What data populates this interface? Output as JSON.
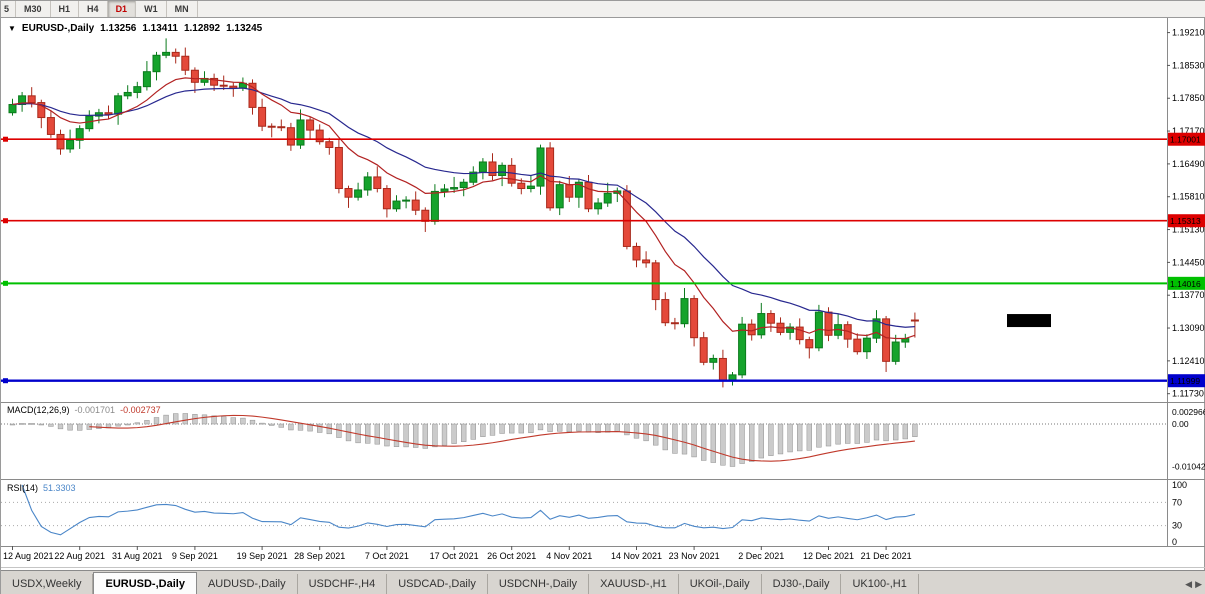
{
  "toolbar": {
    "timeframes": [
      {
        "label": "5",
        "active": false
      },
      {
        "label": "M30",
        "active": false
      },
      {
        "label": "H1",
        "active": false
      },
      {
        "label": "H4",
        "active": false
      },
      {
        "label": "D1",
        "active": true
      },
      {
        "label": "W1",
        "active": false
      },
      {
        "label": "MN",
        "active": false
      }
    ]
  },
  "icons": {
    "chart_menu": "▼",
    "tab_scroll_left": "◀",
    "tab_scroll_right": "▶"
  },
  "chart_header": {
    "symbol": "EURUSD-,Daily",
    "open": "1.13256",
    "high": "1.13411",
    "low": "1.12892",
    "close": "1.13245"
  },
  "indicators": {
    "macd": {
      "label": "MACD(12,26,9)",
      "value_main": "-0.001701",
      "value_signal": "-0.002737",
      "fast": 12,
      "slow": 26,
      "signal": 9,
      "histogram_color": "#cbcbcb",
      "histogram_edge": "#8f8f8f",
      "signal_color": "#c0392b",
      "scale_max": 0.0044,
      "scale_min": -0.0127,
      "axis": [
        {
          "text": "0.002966",
          "value": 0.002966
        },
        {
          "text": "0.00",
          "value": 0
        },
        {
          "text": "-0.01042",
          "value": -0.01042
        }
      ]
    },
    "rsi": {
      "label": "RSI(14)",
      "period": 14,
      "value": "51.3303",
      "line_color": "#4a86c8",
      "axis": [
        100,
        70,
        30,
        0
      ],
      "dotted_levels": [
        70,
        30
      ]
    }
  },
  "price_axis": {
    "tick_values": [
      1.1921,
      1.1853,
      1.1785,
      1.1717,
      1.1649,
      1.1581,
      1.1513,
      1.1445,
      1.1377,
      1.1309,
      1.1241,
      1.1173
    ]
  },
  "levels": [
    {
      "price": 1.17001,
      "color": "#dd0000",
      "width": 1.6,
      "handle": true
    },
    {
      "price": 1.15313,
      "color": "#dd0000",
      "width": 1.6,
      "handle": true
    },
    {
      "price": 1.14016,
      "color": "#00c000",
      "width": 2,
      "handle": true
    },
    {
      "price": 1.11999,
      "color": "#0000cc",
      "width": 2.4,
      "handle": true
    }
  ],
  "bid": {
    "price": 1.13245,
    "label_bg": "#000000",
    "label_fg": "#ffffff"
  },
  "time_axis": {
    "labels": [
      {
        "text": "12 Aug 2021",
        "index": 0
      },
      {
        "text": "22 Aug 2021",
        "index": 7
      },
      {
        "text": "31 Aug 2021",
        "index": 13
      },
      {
        "text": "9 Sep 2021",
        "index": 19
      },
      {
        "text": "19 Sep 2021",
        "index": 26
      },
      {
        "text": "28 Sep 2021",
        "index": 32
      },
      {
        "text": "7 Oct 2021",
        "index": 39
      },
      {
        "text": "17 Oct 2021",
        "index": 46
      },
      {
        "text": "26 Oct 2021",
        "index": 52
      },
      {
        "text": "4 Nov 2021",
        "index": 58
      },
      {
        "text": "14 Nov 2021",
        "index": 65
      },
      {
        "text": "23 Nov 2021",
        "index": 71
      },
      {
        "text": "2 Dec 2021",
        "index": 78
      },
      {
        "text": "12 Dec 2021",
        "index": 85
      },
      {
        "text": "21 Dec 2021",
        "index": 91
      }
    ]
  },
  "tabs": {
    "items": [
      {
        "label": "USDX,Weekly",
        "active": false
      },
      {
        "label": "EURUSD-,Daily",
        "active": true
      },
      {
        "label": "AUDUSD-,Daily",
        "active": false
      },
      {
        "label": "USDCHF-,H4",
        "active": false
      },
      {
        "label": "USDCAD-,Daily",
        "active": false
      },
      {
        "label": "USDCNH-,Daily",
        "active": false
      },
      {
        "label": "XAUUSD-,H1",
        "active": false
      },
      {
        "label": "UKOil-,Daily",
        "active": false
      },
      {
        "label": "DJ30-,Daily",
        "active": false
      },
      {
        "label": "UK100-,H1",
        "active": false
      }
    ]
  },
  "chart_data": {
    "type": "candlestick",
    "symbol": "EURUSD-",
    "period": "Daily",
    "price_range": {
      "top": 1.1945,
      "bottom": 1.1162
    },
    "up_color": "#15a32c",
    "up_edge": "#0a7a1c",
    "down_color": "#e4493a",
    "down_edge": "#a8291b",
    "ma_fast": {
      "period": 10,
      "color": "#b22222"
    },
    "ma_slow": {
      "period": 21,
      "color": "#28288f"
    },
    "candles": [
      [
        1.1755,
        1.1784,
        1.1749,
        1.1772
      ],
      [
        1.1772,
        1.1798,
        1.1757,
        1.179
      ],
      [
        1.179,
        1.1808,
        1.1766,
        1.1776
      ],
      [
        1.1776,
        1.1782,
        1.1723,
        1.1745
      ],
      [
        1.1745,
        1.176,
        1.1703,
        1.171
      ],
      [
        1.171,
        1.172,
        1.1668,
        1.168
      ],
      [
        1.168,
        1.172,
        1.1672,
        1.1698
      ],
      [
        1.1698,
        1.1729,
        1.168,
        1.1722
      ],
      [
        1.1722,
        1.176,
        1.1716,
        1.1748
      ],
      [
        1.1748,
        1.1763,
        1.1733,
        1.1755
      ],
      [
        1.1755,
        1.177,
        1.1742,
        1.1752
      ],
      [
        1.1752,
        1.1796,
        1.173,
        1.179
      ],
      [
        1.179,
        1.1812,
        1.1783,
        1.1797
      ],
      [
        1.1797,
        1.1819,
        1.1785,
        1.1809
      ],
      [
        1.1809,
        1.1862,
        1.1801,
        1.184
      ],
      [
        1.184,
        1.1881,
        1.1822,
        1.1874
      ],
      [
        1.1874,
        1.1909,
        1.1868,
        1.188
      ],
      [
        1.188,
        1.1888,
        1.1857,
        1.1872
      ],
      [
        1.1872,
        1.189,
        1.1833,
        1.1843
      ],
      [
        1.1843,
        1.1849,
        1.1796,
        1.1818
      ],
      [
        1.1818,
        1.1841,
        1.1811,
        1.1826
      ],
      [
        1.1826,
        1.1836,
        1.18,
        1.1812
      ],
      [
        1.1812,
        1.1832,
        1.1802,
        1.181
      ],
      [
        1.181,
        1.1817,
        1.1788,
        1.1806
      ],
      [
        1.1806,
        1.1828,
        1.18,
        1.1816
      ],
      [
        1.1816,
        1.1824,
        1.1751,
        1.1766
      ],
      [
        1.1766,
        1.1784,
        1.1717,
        1.1727
      ],
      [
        1.1727,
        1.1733,
        1.1704,
        1.1726
      ],
      [
        1.1726,
        1.1741,
        1.1717,
        1.1724
      ],
      [
        1.1724,
        1.1734,
        1.1676,
        1.1688
      ],
      [
        1.1688,
        1.1762,
        1.168,
        1.174
      ],
      [
        1.174,
        1.1747,
        1.1701,
        1.1719
      ],
      [
        1.1719,
        1.1731,
        1.1689,
        1.1695
      ],
      [
        1.1695,
        1.1703,
        1.1668,
        1.1683
      ],
      [
        1.1683,
        1.1701,
        1.1588,
        1.1598
      ],
      [
        1.1598,
        1.1604,
        1.1558,
        1.158
      ],
      [
        1.158,
        1.161,
        1.1573,
        1.1595
      ],
      [
        1.1595,
        1.1632,
        1.1583,
        1.1622
      ],
      [
        1.1622,
        1.1644,
        1.159,
        1.1598
      ],
      [
        1.1598,
        1.1605,
        1.1538,
        1.1556
      ],
      [
        1.1556,
        1.1584,
        1.155,
        1.1572
      ],
      [
        1.1572,
        1.1582,
        1.1557,
        1.1574
      ],
      [
        1.1574,
        1.1592,
        1.1543,
        1.1553
      ],
      [
        1.1553,
        1.1559,
        1.1508,
        1.153
      ],
      [
        1.153,
        1.1607,
        1.1523,
        1.1592
      ],
      [
        1.1592,
        1.1607,
        1.158,
        1.1597
      ],
      [
        1.1597,
        1.1622,
        1.1589,
        1.16
      ],
      [
        1.16,
        1.1618,
        1.1582,
        1.1611
      ],
      [
        1.1611,
        1.1644,
        1.1605,
        1.1632
      ],
      [
        1.1632,
        1.1661,
        1.1617,
        1.1653
      ],
      [
        1.1653,
        1.1671,
        1.1615,
        1.1625
      ],
      [
        1.1625,
        1.1652,
        1.1603,
        1.1646
      ],
      [
        1.1646,
        1.1661,
        1.1602,
        1.1609
      ],
      [
        1.1609,
        1.1619,
        1.1586,
        1.1598
      ],
      [
        1.1598,
        1.1625,
        1.159,
        1.1603
      ],
      [
        1.1603,
        1.1689,
        1.1585,
        1.1682
      ],
      [
        1.1682,
        1.1694,
        1.1552,
        1.1558
      ],
      [
        1.1558,
        1.1614,
        1.1543,
        1.1606
      ],
      [
        1.1606,
        1.1624,
        1.157,
        1.158
      ],
      [
        1.158,
        1.1617,
        1.1558,
        1.1611
      ],
      [
        1.1611,
        1.1626,
        1.1549,
        1.1556
      ],
      [
        1.1556,
        1.1578,
        1.1544,
        1.1568
      ],
      [
        1.1568,
        1.161,
        1.156,
        1.1588
      ],
      [
        1.1588,
        1.16,
        1.157,
        1.1593
      ],
      [
        1.1593,
        1.1605,
        1.1472,
        1.1478
      ],
      [
        1.1478,
        1.1486,
        1.1435,
        1.145
      ],
      [
        1.145,
        1.1468,
        1.1434,
        1.1444
      ],
      [
        1.1444,
        1.145,
        1.1346,
        1.1368
      ],
      [
        1.1368,
        1.1383,
        1.1313,
        1.132
      ],
      [
        1.132,
        1.133,
        1.1306,
        1.1318
      ],
      [
        1.1318,
        1.1392,
        1.131,
        1.137
      ],
      [
        1.137,
        1.1377,
        1.1271,
        1.1289
      ],
      [
        1.1289,
        1.1301,
        1.1232,
        1.1238
      ],
      [
        1.1238,
        1.1254,
        1.1223,
        1.1246
      ],
      [
        1.1246,
        1.1264,
        1.1186,
        1.12
      ],
      [
        1.12,
        1.1218,
        1.119,
        1.1212
      ],
      [
        1.1212,
        1.1332,
        1.1205,
        1.1317
      ],
      [
        1.1317,
        1.1327,
        1.1283,
        1.1295
      ],
      [
        1.1295,
        1.1361,
        1.1287,
        1.1339
      ],
      [
        1.1339,
        1.1346,
        1.1301,
        1.1319
      ],
      [
        1.1319,
        1.1331,
        1.1294,
        1.13
      ],
      [
        1.13,
        1.1319,
        1.1285,
        1.1311
      ],
      [
        1.1311,
        1.1329,
        1.1275,
        1.1285
      ],
      [
        1.1285,
        1.1291,
        1.1246,
        1.1268
      ],
      [
        1.1268,
        1.1357,
        1.1261,
        1.1342
      ],
      [
        1.1342,
        1.1352,
        1.1282,
        1.1294
      ],
      [
        1.1294,
        1.1338,
        1.1286,
        1.1316
      ],
      [
        1.1316,
        1.1323,
        1.1268,
        1.1286
      ],
      [
        1.1286,
        1.1298,
        1.1254,
        1.126
      ],
      [
        1.126,
        1.1296,
        1.1245,
        1.1288
      ],
      [
        1.1288,
        1.1346,
        1.1278,
        1.1328
      ],
      [
        1.1328,
        1.1334,
        1.1218,
        1.124
      ],
      [
        1.124,
        1.1295,
        1.1233,
        1.128
      ],
      [
        1.128,
        1.1297,
        1.1268,
        1.1287
      ],
      [
        1.13256,
        1.13411,
        1.12892,
        1.13245
      ]
    ]
  }
}
